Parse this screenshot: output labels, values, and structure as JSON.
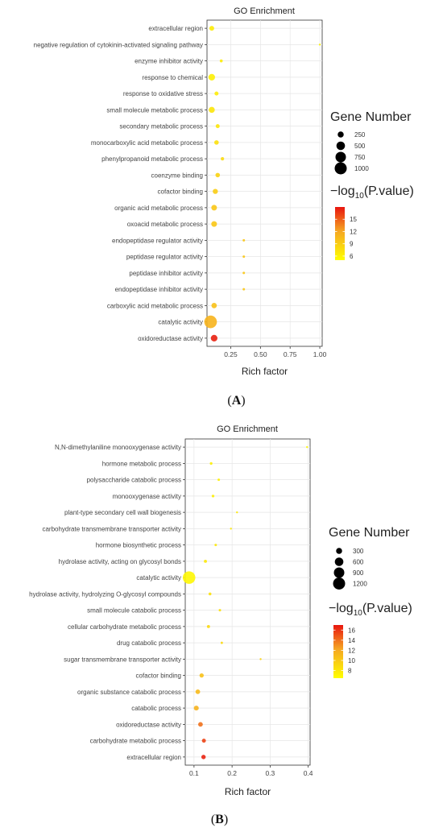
{
  "panels": [
    {
      "panel_label": "(A)",
      "legend_size_title": "Gene Number",
      "legend_color_title": "log10(P.value)",
      "chart_data": {
        "type": "scatter",
        "title": "GO Enrichment",
        "xlabel": "Rich factor",
        "ylabel": "",
        "xlim": [
          0.05,
          1.02
        ],
        "xticks": [
          0.25,
          0.5,
          0.75,
          1.0
        ],
        "xtick_labels": [
          "0.25",
          "0.50",
          "0.75",
          "1.00"
        ],
        "size_legend": [
          250,
          500,
          750,
          1000
        ],
        "color_legend": {
          "min": 5,
          "max": 18,
          "ticks": [
            6,
            9,
            12,
            15
          ],
          "low_color": "#ffff00",
          "high_color": "#e8150f"
        },
        "grid": true,
        "points": [
          {
            "term": "extracellular region",
            "rich_factor": 0.09,
            "gene_number": 160,
            "neg_log10_p": 6.5
          },
          {
            "term": "negative regulation of cytokinin-activated signaling pathway",
            "rich_factor": 1.0,
            "gene_number": 5,
            "neg_log10_p": 6.0
          },
          {
            "term": "enzyme inhibitor activity",
            "rich_factor": 0.17,
            "gene_number": 60,
            "neg_log10_p": 6.5
          },
          {
            "term": "response to chemical",
            "rich_factor": 0.09,
            "gene_number": 300,
            "neg_log10_p": 6.2
          },
          {
            "term": "response to oxidative stress",
            "rich_factor": 0.13,
            "gene_number": 110,
            "neg_log10_p": 6.5
          },
          {
            "term": "small molecule metabolic process",
            "rich_factor": 0.09,
            "gene_number": 250,
            "neg_log10_p": 7.0
          },
          {
            "term": "secondary metabolic process",
            "rich_factor": 0.14,
            "gene_number": 110,
            "neg_log10_p": 7.0
          },
          {
            "term": "monocarboxylic acid metabolic process",
            "rich_factor": 0.13,
            "gene_number": 140,
            "neg_log10_p": 7.5
          },
          {
            "term": "phenylpropanoid metabolic process",
            "rich_factor": 0.18,
            "gene_number": 80,
            "neg_log10_p": 8.0
          },
          {
            "term": "coenzyme binding",
            "rich_factor": 0.14,
            "gene_number": 140,
            "neg_log10_p": 8.5
          },
          {
            "term": "cofactor binding",
            "rich_factor": 0.12,
            "gene_number": 180,
            "neg_log10_p": 9.0
          },
          {
            "term": "organic acid metabolic process",
            "rich_factor": 0.11,
            "gene_number": 220,
            "neg_log10_p": 9.5
          },
          {
            "term": "oxoacid metabolic process",
            "rich_factor": 0.11,
            "gene_number": 220,
            "neg_log10_p": 9.5
          },
          {
            "term": "endopeptidase regulator activity",
            "rich_factor": 0.36,
            "gene_number": 40,
            "neg_log10_p": 9.5
          },
          {
            "term": "peptidase regulator activity",
            "rich_factor": 0.36,
            "gene_number": 40,
            "neg_log10_p": 9.5
          },
          {
            "term": "peptidase inhibitor activity",
            "rich_factor": 0.36,
            "gene_number": 40,
            "neg_log10_p": 9.5
          },
          {
            "term": "endopeptidase inhibitor activity",
            "rich_factor": 0.36,
            "gene_number": 40,
            "neg_log10_p": 9.5
          },
          {
            "term": "carboxylic acid metabolic process",
            "rich_factor": 0.11,
            "gene_number": 200,
            "neg_log10_p": 10.0
          },
          {
            "term": "catalytic activity",
            "rich_factor": 0.08,
            "gene_number": 1100,
            "neg_log10_p": 11.0
          },
          {
            "term": "oxidoreductase activity",
            "rich_factor": 0.11,
            "gene_number": 300,
            "neg_log10_p": 17.5
          }
        ]
      }
    },
    {
      "panel_label": "(B)",
      "legend_size_title": "Gene Number",
      "legend_color_title": "log10(P.value)",
      "chart_data": {
        "type": "scatter",
        "title": "GO Enrichment",
        "xlabel": "Rich factor",
        "ylabel": "",
        "xlim": [
          0.077,
          0.405
        ],
        "xticks": [
          0.1,
          0.2,
          0.3,
          0.4
        ],
        "xtick_labels": [
          "0.1",
          "0.2",
          "0.3",
          "0.4"
        ],
        "size_legend": [
          300,
          600,
          900,
          1200
        ],
        "color_legend": {
          "min": 6.5,
          "max": 17,
          "ticks": [
            8,
            10,
            12,
            14,
            16
          ],
          "low_color": "#ffff00",
          "high_color": "#e8150f"
        },
        "grid": true,
        "points": [
          {
            "term": "N,N-dimethylaniline monooxygenase activity",
            "rich_factor": 0.397,
            "gene_number": 5,
            "neg_log10_p": 7.0
          },
          {
            "term": "hormone metabolic process",
            "rich_factor": 0.145,
            "gene_number": 60,
            "neg_log10_p": 7.5
          },
          {
            "term": "polysaccharide catabolic process",
            "rich_factor": 0.165,
            "gene_number": 50,
            "neg_log10_p": 7.5
          },
          {
            "term": "monooxygenase activity",
            "rich_factor": 0.15,
            "gene_number": 60,
            "neg_log10_p": 7.5
          },
          {
            "term": "plant-type secondary cell wall biogenesis",
            "rich_factor": 0.213,
            "gene_number": 30,
            "neg_log10_p": 8.0
          },
          {
            "term": "carbohydrate transmembrane transporter activity",
            "rich_factor": 0.197,
            "gene_number": 30,
            "neg_log10_p": 8.0
          },
          {
            "term": "hormone biosynthetic process",
            "rich_factor": 0.157,
            "gene_number": 50,
            "neg_log10_p": 8.0
          },
          {
            "term": "hydrolase activity, acting on glycosyl bonds",
            "rich_factor": 0.13,
            "gene_number": 80,
            "neg_log10_p": 8.0
          },
          {
            "term": "catalytic activity",
            "rich_factor": 0.087,
            "gene_number": 1300,
            "neg_log10_p": 7.0
          },
          {
            "term": "hydrolase activity, hydrolyzing O-glycosyl compounds",
            "rich_factor": 0.142,
            "gene_number": 70,
            "neg_log10_p": 8.5
          },
          {
            "term": "small molecule catabolic process",
            "rich_factor": 0.168,
            "gene_number": 50,
            "neg_log10_p": 8.5
          },
          {
            "term": "cellular carbohydrate metabolic process",
            "rich_factor": 0.138,
            "gene_number": 80,
            "neg_log10_p": 9.0
          },
          {
            "term": "drug catabolic process",
            "rich_factor": 0.173,
            "gene_number": 45,
            "neg_log10_p": 9.0
          },
          {
            "term": "sugar transmembrane transporter activity",
            "rich_factor": 0.275,
            "gene_number": 20,
            "neg_log10_p": 9.5
          },
          {
            "term": "cofactor binding",
            "rich_factor": 0.12,
            "gene_number": 150,
            "neg_log10_p": 10.5
          },
          {
            "term": "organic substance catabolic process",
            "rich_factor": 0.11,
            "gene_number": 180,
            "neg_log10_p": 11.0
          },
          {
            "term": "catabolic process",
            "rich_factor": 0.106,
            "gene_number": 200,
            "neg_log10_p": 11.5
          },
          {
            "term": "oxidoreductase activity",
            "rich_factor": 0.117,
            "gene_number": 180,
            "neg_log10_p": 14.0
          },
          {
            "term": "carbohydrate metabolic process",
            "rich_factor": 0.126,
            "gene_number": 130,
            "neg_log10_p": 15.5
          },
          {
            "term": "extracellular region",
            "rich_factor": 0.125,
            "gene_number": 160,
            "neg_log10_p": 16.5
          }
        ]
      }
    }
  ]
}
